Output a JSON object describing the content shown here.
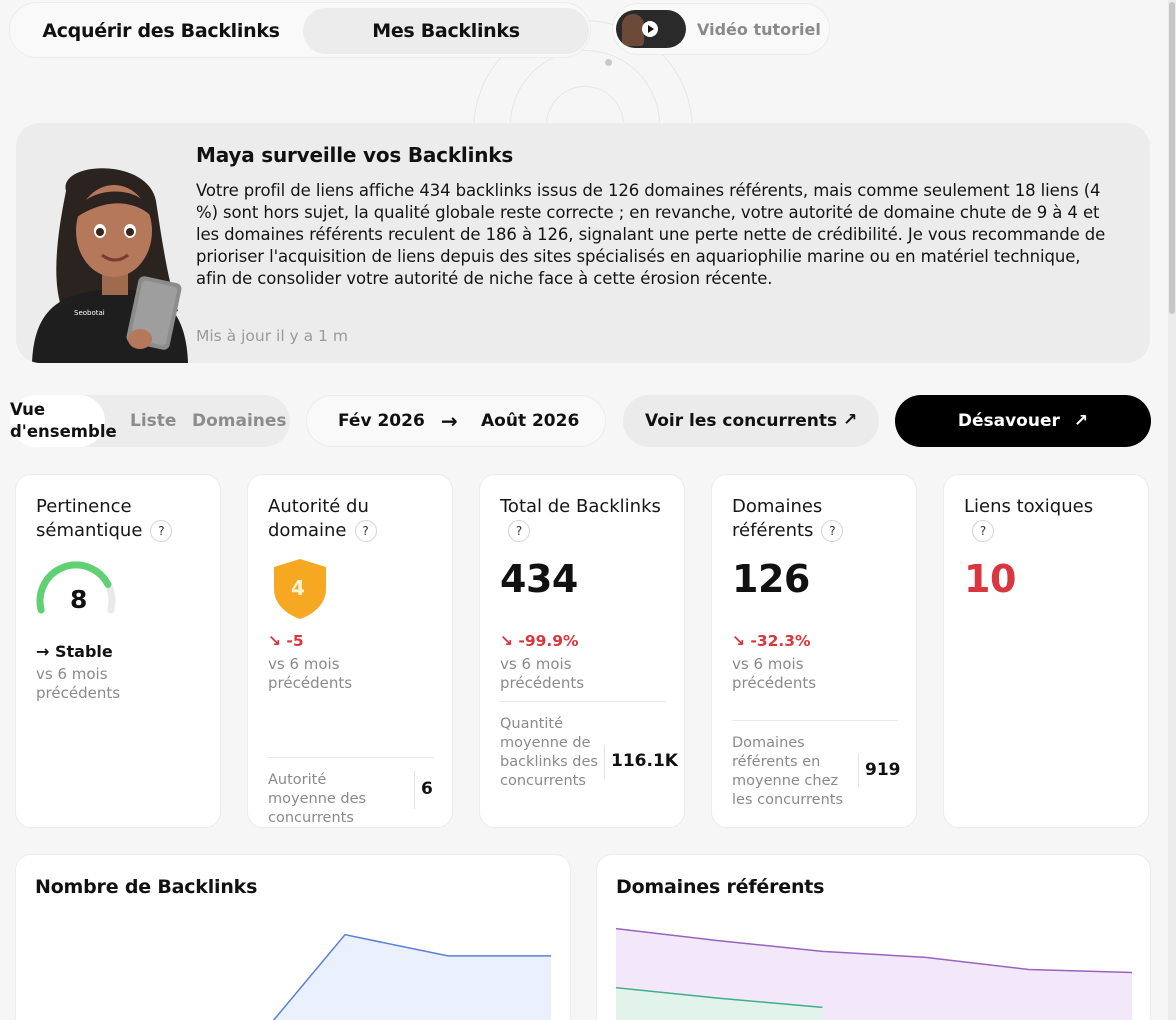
{
  "top_tabs": {
    "acquire": "Acquérir des Backlinks",
    "mine": "Mes Backlinks",
    "video_label": "Vidéo tutoriel"
  },
  "maya": {
    "title": "Maya surveille vos Backlinks",
    "text": "Votre profil de liens affiche 434 backlinks issus de 126 domaines référents, mais comme seulement 18 liens (4 %) sont hors sujet, la qualité globale reste correcte ; en revanche, votre autorité de domaine chute de 9 à 4 et les domaines référents reculent de 186 à 126, signalant une perte nette de crédibilité. Je vous recommande de prioriser l'acquisition de liens depuis des sites spécialisés en aquariophilie marine ou en matériel technique, afin de consolider votre autorité de niche face à cette érosion récente.",
    "updated": "Mis à jour il y a 1 m",
    "shirt_text": "Seobotai"
  },
  "filters": {
    "view_overview": "Vue d'ensemble",
    "view_list": "Liste",
    "view_domains": "Domaines",
    "date_from": "Fév 2026",
    "date_arrow": "→",
    "date_to": "Août 2026",
    "competitors_btn": "Voir les concurrents",
    "competitors_icon": "↗",
    "disavow_btn": "Désavouer",
    "disavow_icon": "↗"
  },
  "kpis": {
    "semantic": {
      "title": "Pertinence sémantique",
      "score": "8",
      "gauge_fraction": 0.8,
      "trend": "→ Stable",
      "vs": "vs 6 mois précédents"
    },
    "authority": {
      "title": "Autorité du domaine",
      "value": "4",
      "delta": "↘ -5",
      "vs": "vs 6 mois précédents",
      "comp_label": "Autorité moyenne des concurrents",
      "comp_value": "6"
    },
    "backlinks": {
      "title": "Total de Backlinks",
      "value": "434",
      "delta": "↘ -99.9%",
      "vs": "vs 6 mois précédents",
      "comp_label": "Quantité moyenne de backlinks des concurrents",
      "comp_value": "116.1K"
    },
    "domains": {
      "title": "Domaines référents",
      "value": "126",
      "delta": "↘ -32.3%",
      "vs": "vs 6 mois précédents",
      "comp_label": "Domaines référents en moyenne chez les concurrents",
      "comp_value": "919"
    },
    "toxic": {
      "title": "Liens toxiques",
      "value": "10"
    },
    "help": "?"
  },
  "charts": {
    "backlinks_title": "Nombre de Backlinks",
    "domains_title": "Domaines référents"
  },
  "colors": {
    "accent_red": "#d9363e",
    "gauge_green": "#5fd173",
    "shield_orange": "#f7a823",
    "backlinks_line": "#5b7fd6",
    "domains_line_purple": "#9a62c0",
    "domains_line_green": "#3fae8a"
  },
  "chart_data": [
    {
      "type": "area",
      "title": "Nombre de Backlinks",
      "x_range": [
        0,
        5
      ],
      "y_range": [
        0,
        7
      ],
      "series": [
        {
          "x": [
            2.3,
            3,
            4,
            5
          ],
          "values": [
            0,
            5.7,
            4.3,
            4.3
          ]
        }
      ]
    },
    {
      "type": "area",
      "title": "Domaines référents",
      "x_range": [
        0,
        5
      ],
      "y_range": [
        0,
        7
      ],
      "series": [
        {
          "x": [
            0,
            1,
            2,
            3,
            4,
            5
          ],
          "values": [
            6.1,
            5.3,
            4.6,
            4.2,
            3.4,
            3.2
          ]
        },
        {
          "x": [
            0,
            1,
            2
          ],
          "values": [
            2.2,
            1.5,
            0.9
          ]
        }
      ]
    }
  ]
}
